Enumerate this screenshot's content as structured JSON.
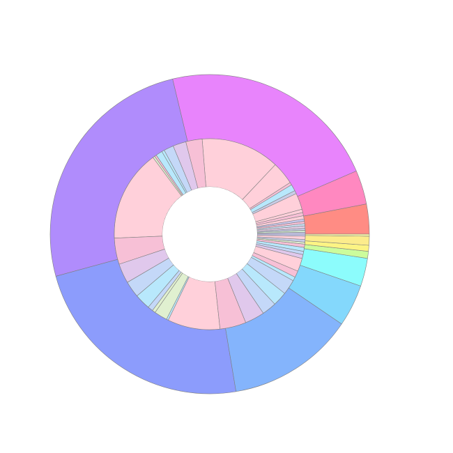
{
  "chart_data": {
    "type": "sunburst",
    "title": "",
    "start_angle_deg": 0,
    "direction": "counterclockwise",
    "outer_ring": {
      "slices": [
        {
          "value": 3.0,
          "color": "#ff8c84"
        },
        {
          "value": 3.4,
          "color": "#ff88c0"
        },
        {
          "value": 22.0,
          "color": "#e884fc"
        },
        {
          "value": 25.2,
          "color": "#b08cfc"
        },
        {
          "value": 23.1,
          "color": "#8c9cfc"
        },
        {
          "value": 12.7,
          "color": "#84b4fc"
        },
        {
          "value": 4.2,
          "color": "#84d8fc"
        },
        {
          "value": 2.8,
          "color": "#8cfcfc"
        },
        {
          "value": 0.7,
          "color": "#ccfc9c"
        },
        {
          "value": 0.6,
          "color": "#fcf484"
        },
        {
          "value": 0.9,
          "color": "#fcec8c"
        },
        {
          "value": 0.2,
          "color": "#f8f8a8"
        }
      ]
    },
    "inner_ring": {
      "slices": [
        {
          "value": 0.3,
          "color": "#c9c9f0"
        },
        {
          "value": 0.3,
          "color": "#cfe8cf"
        },
        {
          "value": 0.3,
          "color": "#c8cde8"
        },
        {
          "value": 0.35,
          "color": "#e8d0ea"
        },
        {
          "value": 0.35,
          "color": "#c8ddf0"
        },
        {
          "value": 0.35,
          "color": "#f7c0d6"
        },
        {
          "value": 0.35,
          "color": "#c9c9f0"
        },
        {
          "value": 0.5,
          "color": "#ffd0da"
        },
        {
          "value": 0.5,
          "color": "#f7c0d6"
        },
        {
          "value": 0.5,
          "color": "#ffd0da"
        },
        {
          "value": 2.5,
          "color": "#ffd0da"
        },
        {
          "value": 0.5,
          "color": "#c8cde8"
        },
        {
          "value": 1.0,
          "color": "#b8e8fc"
        },
        {
          "value": 0.4,
          "color": "#f7c0d6"
        },
        {
          "value": 3.5,
          "color": "#ffd0da"
        },
        {
          "value": 12.0,
          "color": "#ffd0da"
        },
        {
          "value": 2.5,
          "color": "#f7c0d6"
        },
        {
          "value": 2.0,
          "color": "#e0c8ec"
        },
        {
          "value": 1.5,
          "color": "#c4d8f8"
        },
        {
          "value": 0.4,
          "color": "#b8e8fc"
        },
        {
          "value": 1.0,
          "color": "#b8e8fc"
        },
        {
          "value": 0.3,
          "color": "#f7c0d6"
        },
        {
          "value": 0.3,
          "color": "#e0f0d0"
        },
        {
          "value": 14.0,
          "color": "#ffd0da"
        },
        {
          "value": 4.0,
          "color": "#f7c0d6"
        },
        {
          "value": 3.0,
          "color": "#e0c8ec"
        },
        {
          "value": 2.5,
          "color": "#c4d8f8"
        },
        {
          "value": 2.4,
          "color": "#b8e8fc"
        },
        {
          "value": 0.8,
          "color": "#c4d8f8"
        },
        {
          "value": 0.5,
          "color": "#e0f0d0"
        },
        {
          "value": 2.0,
          "color": "#e0f0d0"
        },
        {
          "value": 0.3,
          "color": "#b8e8fc"
        },
        {
          "value": 8.0,
          "color": "#ffd0da"
        },
        {
          "value": 4.0,
          "color": "#f7c0d6"
        },
        {
          "value": 3.0,
          "color": "#e0c8ec"
        },
        {
          "value": 2.2,
          "color": "#c4d8f8"
        },
        {
          "value": 2.2,
          "color": "#b8e8fc"
        },
        {
          "value": 2.3,
          "color": "#c4d8f8"
        },
        {
          "value": 0.6,
          "color": "#b8e8fc"
        },
        {
          "value": 1.0,
          "color": "#f7c0d6"
        },
        {
          "value": 2.0,
          "color": "#ffd0da"
        },
        {
          "value": 0.6,
          "color": "#e0c8ec"
        },
        {
          "value": 0.5,
          "color": "#c4d8f8"
        },
        {
          "value": 0.6,
          "color": "#b8e8fc"
        },
        {
          "value": 0.5,
          "color": "#f7c0d6"
        },
        {
          "value": 0.3,
          "color": "#e0f0d0"
        },
        {
          "value": 0.4,
          "color": "#c8cde8"
        },
        {
          "value": 0.5,
          "color": "#ffd0da"
        },
        {
          "value": 0.3,
          "color": "#c9c9f0"
        }
      ]
    },
    "grid": false,
    "legend": "none"
  }
}
